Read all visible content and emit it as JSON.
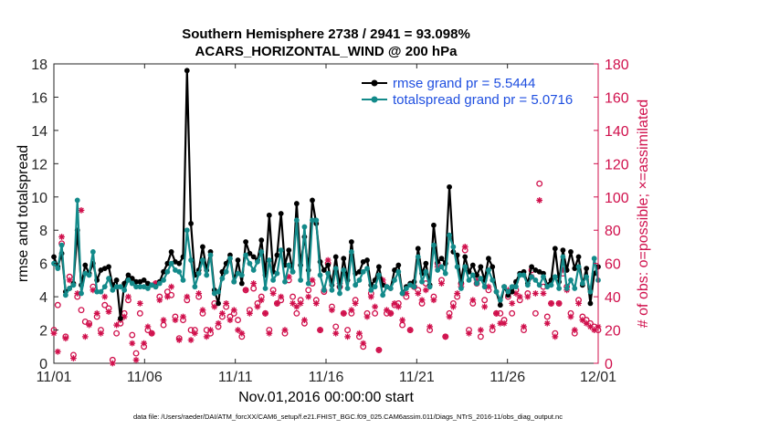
{
  "chart_data": {
    "type": "line",
    "title_line1": "Southern Hemisphere 2738 / 2941 = 93.098%",
    "title_line2": "ACARS_HORIZONTAL_WIND @ 200 hPa",
    "xlabel": "Nov.01,2016 00:00:00 start",
    "ylabel_left": "rmse and totalspread",
    "ylabel_right": "# of obs: o=possible; ×=assimilated",
    "footer": "data file: /Users/raeder/DAI/ATM_forcXX/CAM6_setup/f.e21.FHIST_BGC.f09_025.CAM6assim.011/Diags_NTrS_2016-11/obs_diag_output.nc",
    "xlim": [
      0,
      30
    ],
    "x_ticks": [
      0,
      5,
      10,
      15,
      20,
      25,
      30
    ],
    "x_tick_labels": [
      "11/01",
      "11/06",
      "11/11",
      "11/16",
      "11/21",
      "11/26",
      "12/01"
    ],
    "ylim_left": [
      0,
      18
    ],
    "y_ticks_left": [
      0,
      2,
      4,
      6,
      8,
      10,
      12,
      14,
      16,
      18
    ],
    "ylim_right": [
      0,
      180
    ],
    "y_ticks_right": [
      0,
      20,
      40,
      60,
      80,
      100,
      120,
      140,
      160,
      180
    ],
    "colors": {
      "rmse": "#000000",
      "spread": "#138a8a",
      "obs": "#d0104c",
      "legend_text": "#1f4fe0",
      "right_axis": "#d0104c"
    },
    "series": [
      {
        "name": "rmse grand pr = 5.5444",
        "values": [
          6.4,
          5.8,
          6.6,
          4.3,
          4.5,
          4.8,
          8.0,
          4.7,
          5.9,
          5.4,
          6.0,
          5.0,
          5.6,
          5.7,
          5.8,
          4.7,
          5.0,
          2.7,
          4.8,
          5.3,
          5.1,
          4.9,
          4.9,
          5.0,
          4.8,
          4.7,
          4.6,
          4.9,
          5.5,
          6.0,
          6.7,
          6.1,
          6.0,
          6.4,
          17.6,
          8.4,
          5.3,
          5.6,
          7.0,
          5.6,
          6.7,
          4.4,
          3.6,
          5.5,
          6.0,
          6.5,
          4.9,
          6.2,
          4.8,
          7.3,
          6.6,
          6.4,
          6.2,
          7.4,
          5.3,
          8.9,
          5.5,
          6.5,
          9.0,
          5.9,
          6.8,
          5.5,
          9.6,
          5.9,
          7.6,
          5.6,
          9.8,
          8.4,
          6.1,
          5.6,
          5.9,
          4.7,
          6.4,
          4.6,
          6.3,
          5.0,
          7.3,
          5.4,
          5.5,
          6.1,
          6.2,
          4.7,
          5.0,
          5.8,
          4.7,
          4.6,
          4.5,
          5.6,
          5.9,
          4.2,
          4.6,
          4.8,
          4.9,
          6.9,
          5.4,
          6.0,
          4.7,
          8.3,
          6.1,
          6.3,
          6.0,
          10.6,
          6.7,
          6.5,
          4.9,
          6.4,
          5.5,
          5.9,
          5.3,
          5.8,
          5.0,
          6.3,
          5.8,
          4.3,
          3.5,
          4.6,
          4.1,
          4.3,
          4.9,
          5.4,
          5.5,
          4.8,
          5.8,
          5.6,
          5.5,
          5.4,
          4.7,
          5.0,
          6.9,
          4.9,
          6.8,
          5.6,
          6.7,
          5.7,
          6.4,
          4.7,
          5.7,
          3.6,
          5.4,
          5.8
        ]
      },
      {
        "name": "totalspread grand pr = 5.0716",
        "values": [
          6.0,
          5.7,
          7.1,
          4.1,
          4.5,
          4.7,
          9.8,
          4.2,
          5.4,
          5.3,
          6.7,
          4.3,
          4.3,
          4.6,
          5.1,
          4.4,
          4.6,
          4.6,
          4.4,
          5.0,
          4.8,
          4.6,
          4.6,
          4.6,
          4.5,
          4.7,
          4.6,
          4.8,
          5.0,
          5.5,
          6.0,
          5.6,
          5.5,
          5.0,
          8.0,
          6.2,
          4.6,
          5.4,
          6.2,
          5.3,
          6.5,
          4.2,
          4.3,
          5.1,
          5.5,
          6.3,
          4.9,
          5.4,
          5.3,
          6.5,
          6.0,
          5.6,
          6.1,
          6.7,
          4.5,
          6.2,
          5.0,
          5.4,
          6.8,
          4.9,
          5.9,
          5.5,
          8.6,
          5.0,
          8.2,
          4.8,
          8.6,
          8.6,
          5.3,
          4.4,
          5.4,
          4.4,
          5.7,
          4.2,
          5.6,
          4.5,
          6.7,
          4.7,
          5.0,
          5.5,
          5.7,
          4.4,
          4.6,
          5.3,
          4.1,
          4.6,
          4.5,
          5.0,
          5.5,
          4.2,
          4.5,
          4.7,
          4.6,
          6.4,
          4.9,
          5.5,
          4.6,
          7.1,
          5.6,
          5.8,
          5.4,
          7.7,
          7.0,
          5.8,
          4.5,
          5.8,
          5.0,
          5.3,
          4.8,
          5.1,
          4.6,
          5.6,
          5.0,
          4.3,
          3.8,
          4.6,
          4.3,
          4.6,
          4.6,
          5.3,
          5.3,
          4.7,
          5.2,
          5.0,
          4.7,
          5.2,
          4.6,
          4.7,
          5.2,
          4.5,
          6.4,
          4.5,
          5.0,
          4.5,
          5.8,
          4.8,
          5.2,
          4.3,
          6.3,
          5.0
        ]
      }
    ],
    "obs_possible": [
      20,
      35,
      72,
      16,
      52,
      5,
      40,
      32,
      25,
      24,
      46,
      28,
      20,
      35,
      33,
      2,
      18,
      24,
      30,
      38,
      17,
      6,
      30,
      10,
      20,
      18,
      48,
      40,
      23,
      43,
      41,
      28,
      15,
      26,
      38,
      20,
      20,
      40,
      30,
      20,
      18,
      36,
      22,
      28,
      34,
      28,
      30,
      26,
      16,
      44,
      32,
      45,
      36,
      40,
      30,
      20,
      44,
      36,
      38,
      18,
      50,
      40,
      30,
      38,
      24,
      44,
      48,
      38,
      20,
      43,
      60,
      34,
      22,
      46,
      30,
      20,
      30,
      38,
      16,
      10,
      30,
      42,
      30,
      8,
      48,
      30,
      30,
      35,
      36,
      23,
      40,
      20,
      46,
      44,
      36,
      48,
      20,
      40,
      60,
      50,
      16,
      30,
      36,
      40,
      48,
      68,
      20,
      36,
      48,
      16,
      38,
      44,
      20,
      30,
      30,
      26,
      40,
      30,
      44,
      38,
      20,
      42,
      56,
      30,
      108,
      46,
      28,
      36,
      18,
      36,
      54,
      46,
      30,
      18,
      38,
      28,
      26,
      24,
      22,
      20
    ],
    "obs_assimilated": [
      18,
      7,
      76,
      15,
      50,
      3,
      42,
      92,
      16,
      23,
      44,
      30,
      18,
      40,
      31,
      0,
      23,
      26,
      28,
      40,
      12,
      2,
      36,
      12,
      22,
      18,
      48,
      38,
      26,
      40,
      46,
      26,
      14,
      28,
      40,
      14,
      18,
      42,
      32,
      16,
      20,
      34,
      24,
      30,
      36,
      26,
      32,
      20,
      18,
      44,
      30,
      48,
      34,
      38,
      30,
      18,
      42,
      36,
      40,
      20,
      52,
      36,
      34,
      36,
      26,
      40,
      50,
      36,
      20,
      44,
      62,
      32,
      18,
      48,
      30,
      16,
      32,
      36,
      18,
      12,
      28,
      40,
      34,
      8,
      50,
      32,
      30,
      36,
      34,
      26,
      42,
      20,
      46,
      42,
      38,
      44,
      22,
      38,
      58,
      48,
      16,
      28,
      34,
      42,
      46,
      70,
      18,
      38,
      50,
      20,
      34,
      46,
      22,
      30,
      24,
      24,
      44,
      36,
      42,
      40,
      22,
      40,
      52,
      42,
      98,
      42,
      24,
      36,
      16,
      36,
      56,
      44,
      28,
      20,
      36,
      26,
      24,
      22,
      20,
      22
    ]
  }
}
